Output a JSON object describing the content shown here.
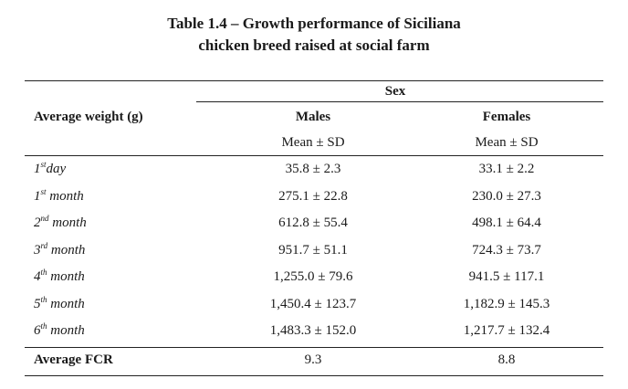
{
  "caption": {
    "line1": "Table 1.4 – Growth performance of Siciliana",
    "line2": "chicken breed raised at social farm"
  },
  "header": {
    "group": "Sex",
    "row_label": "Average weight (g)",
    "col_males": "Males",
    "col_females": "Females",
    "sub_males": "Mean ± SD",
    "sub_females": "Mean ± SD"
  },
  "rows": [
    {
      "num": "1",
      "sup": "st",
      "rest": "day",
      "males": "35.8 ± 2.3",
      "females": "33.1 ± 2.2"
    },
    {
      "num": "1",
      "sup": "st",
      "rest": " month",
      "males": "275.1 ± 22.8",
      "females": "230.0 ± 27.3"
    },
    {
      "num": "2",
      "sup": "nd",
      "rest": " month",
      "males": "612.8 ± 55.4",
      "females": "498.1 ± 64.4"
    },
    {
      "num": "3",
      "sup": "rd",
      "rest": " month",
      "males": "951.7 ± 51.1",
      "females": "724.3 ± 73.7"
    },
    {
      "num": "4",
      "sup": "th",
      "rest": " month",
      "males": "1,255.0 ± 79.6",
      "females": "941.5 ± 117.1"
    },
    {
      "num": "5",
      "sup": "th",
      "rest": " month",
      "males": "1,450.4 ± 123.7",
      "females": "1,182.9 ± 145.3"
    },
    {
      "num": "6",
      "sup": "th",
      "rest": " month",
      "males": "1,483.3 ± 152.0",
      "females": "1,217.7 ± 132.4"
    }
  ],
  "footer": {
    "label": "Average FCR",
    "males": "9.3",
    "females": "8.8"
  }
}
